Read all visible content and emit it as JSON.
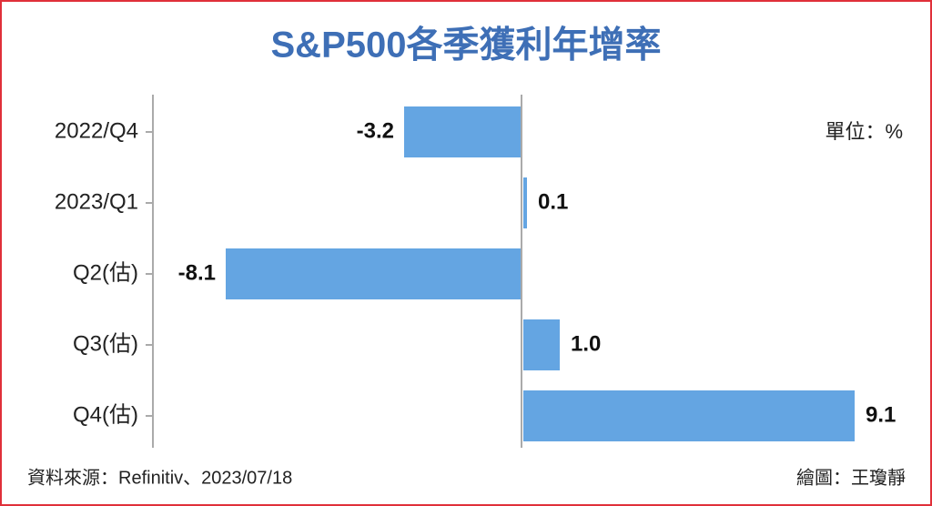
{
  "chart_data": {
    "type": "bar",
    "orientation": "horizontal",
    "title": "S&P500各季獲利年增率",
    "unit": "單位：%",
    "source": "資料來源：Refinitiv、2023/07/18",
    "credit": "繪圖：王瓊靜",
    "categories": [
      "2022/Q4",
      "2023/Q1",
      "Q2(估)",
      "Q3(估)",
      "Q4(估)"
    ],
    "values": [
      -3.2,
      0.1,
      -8.1,
      1.0,
      9.1
    ],
    "value_labels": [
      "-3.2",
      "0.1",
      "-8.1",
      "1.0",
      "9.1"
    ],
    "color": "#64a5e2",
    "xlim": [
      -10,
      11
    ]
  }
}
